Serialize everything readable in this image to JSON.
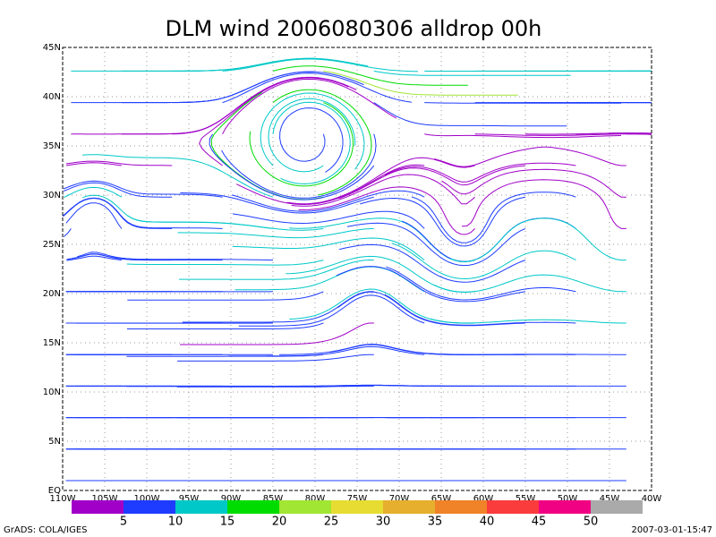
{
  "map": {
    "title": "DLM wind 2006080306 alldrop 00h",
    "lat_labels": [
      "EQ",
      "5N",
      "10N",
      "15N",
      "20N",
      "25N",
      "30N",
      "35N",
      "40N",
      "45N"
    ],
    "lon_labels": [
      "110W",
      "105W",
      "100W",
      "95W",
      "90W",
      "85W",
      "80W",
      "75W",
      "70W",
      "65W",
      "60W",
      "55W",
      "50W",
      "45W",
      "40W"
    ],
    "colorbar": {
      "colors": [
        "#a000c8",
        "#1e3cff",
        "#00c8c8",
        "#00dc00",
        "#a0e632",
        "#e6dc32",
        "#e6af2d",
        "#f08228",
        "#fa3c3c",
        "#f00082",
        "#aaaaaa"
      ],
      "labels": [
        5,
        10,
        15,
        20,
        25,
        30,
        35,
        40,
        45,
        50
      ]
    },
    "footer_left": "GrADS: COLA/IGES",
    "footer_right": "2007-03-01-15:47"
  }
}
